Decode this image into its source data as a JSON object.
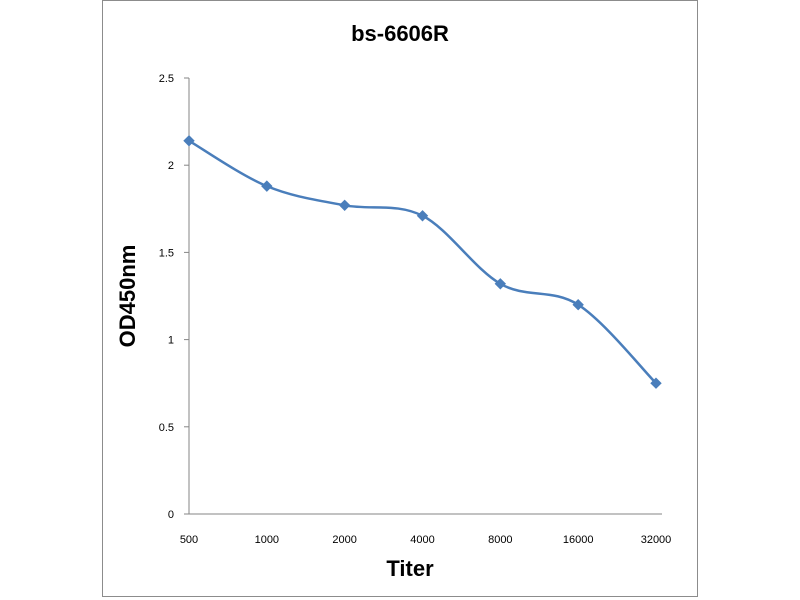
{
  "chart_data": {
    "type": "line",
    "title": "bs-6606R",
    "xlabel": "Titer",
    "ylabel": "OD450nm",
    "categories": [
      "500",
      "1000",
      "2000",
      "4000",
      "8000",
      "16000",
      "32000"
    ],
    "series": [
      {
        "values": [
          2.14,
          1.88,
          1.77,
          1.71,
          1.32,
          1.2,
          0.75
        ]
      }
    ],
    "ylim": [
      0,
      2.5
    ],
    "yticks": [
      "0",
      "0.5",
      "1",
      "1.5",
      "2",
      "2.5"
    ],
    "grid": false,
    "legend": "none",
    "line_style": "smooth",
    "marker": "diamond",
    "colors": {
      "series": "#4a7ebb",
      "axis": "#868686",
      "frame": "#8c8c8c"
    }
  }
}
